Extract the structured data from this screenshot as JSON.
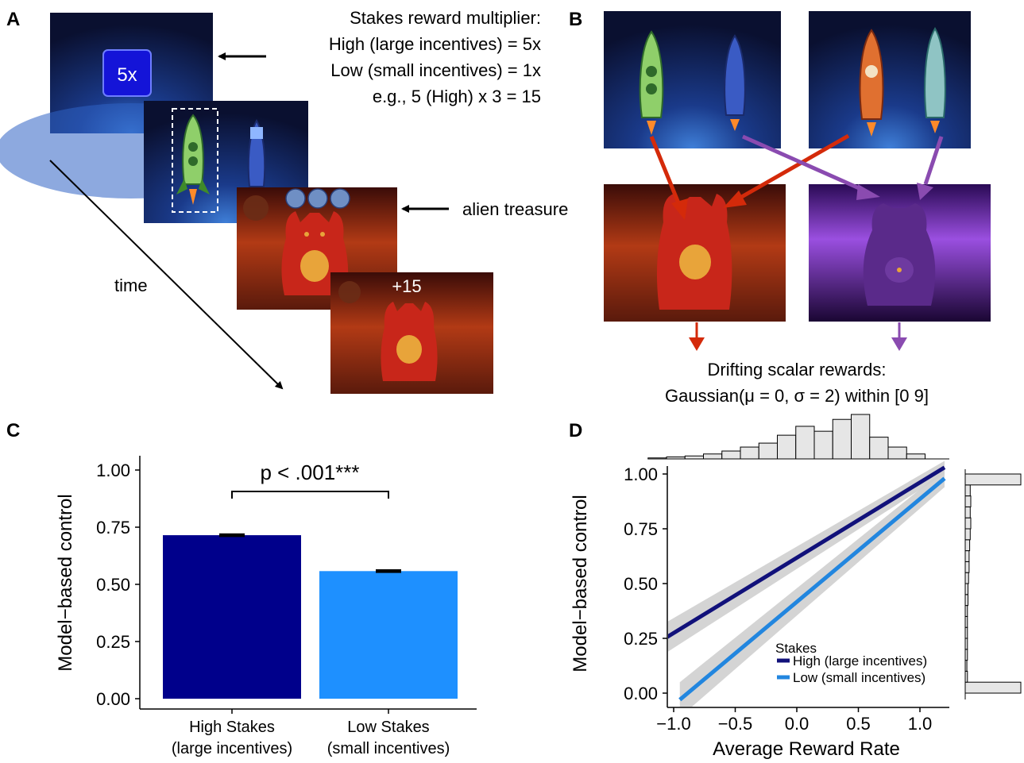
{
  "panels": {
    "a": "A",
    "b": "B",
    "c": "C",
    "d": "D"
  },
  "panel_a": {
    "multiplier_text": "5x",
    "stakes_lines": [
      "Stakes reward multiplier:",
      "High (large incentives) = 5x",
      "Low (small incentives) = 1x",
      "e.g., 5 (High) x 3 = 15"
    ],
    "treasure_label": "alien treasure",
    "reward_text": "+15",
    "time_label": "time"
  },
  "panel_b": {
    "caption_lines": [
      "Drifting scalar rewards:",
      "Gaussian(μ = 0, σ = 2) within [0 9]"
    ]
  },
  "colors": {
    "high": "#00008B",
    "low": "#1E90FF",
    "line_high": "#11117a",
    "line_low": "#2286df",
    "ci": "#cfcfcf",
    "red_arrow": "#d42a0a",
    "purple_arrow": "#8a4bb0",
    "space": "#0d1a45",
    "mars": "#8a2a12",
    "purple_planet": "#7b2fb3"
  },
  "chart_data": [
    {
      "type": "bar",
      "panel": "C",
      "categories": [
        "High Stakes\n(large incentives)",
        "Low Stakes\n(small incentives)"
      ],
      "category_lines": [
        [
          "High Stakes",
          "(large incentives)"
        ],
        [
          "Low Stakes",
          "(small incentives)"
        ]
      ],
      "values": [
        0.715,
        0.558
      ],
      "errors": [
        0.008,
        0.008
      ],
      "ylabel": "Model−based control",
      "xlabel": "",
      "ylim": [
        0,
        1.05
      ],
      "yticks": [
        "0.00",
        "0.25",
        "0.50",
        "0.75",
        "1.00"
      ],
      "annotation": "p < .001***",
      "grid": false
    },
    {
      "type": "line",
      "panel": "D",
      "xlabel": "Average Reward Rate",
      "ylabel": "Model−based control",
      "xlim": [
        -1.15,
        1.25
      ],
      "ylim": [
        -0.02,
        1.05
      ],
      "xticks": [
        "−1.0",
        "−0.5",
        "0.0",
        "0.5",
        "1.0"
      ],
      "yticks": [
        "0.00",
        "0.25",
        "0.50",
        "0.75",
        "1.00"
      ],
      "legend_title": "Stakes",
      "legend_position": "bottom-right",
      "series": [
        {
          "name": "High (large incentives)",
          "x": [
            -1.1,
            1.2
          ],
          "y": [
            0.24,
            1.03
          ],
          "ci_low": [
            0.17,
            1.0
          ],
          "ci_high": [
            0.31,
            1.06
          ]
        },
        {
          "name": "Low (small incentives)",
          "x": [
            -0.95,
            1.2
          ],
          "y": [
            -0.03,
            0.98
          ],
          "ci_low": [
            -0.11,
            0.94
          ],
          "ci_high": [
            0.05,
            1.02
          ]
        }
      ],
      "x_histogram": {
        "bin_starts": [
          -1.1,
          -0.95,
          -0.8,
          -0.65,
          -0.5,
          -0.35,
          -0.2,
          -0.05,
          0.1,
          0.25,
          0.4,
          0.55,
          0.7,
          0.85,
          1.0,
          1.15
        ],
        "bin_width": 0.15,
        "counts": [
          0,
          1,
          2,
          3,
          5,
          8,
          12,
          16,
          24,
          33,
          28,
          40,
          45,
          22,
          12,
          5
        ]
      },
      "y_histogram": {
        "bin_starts": [
          0.0,
          0.05,
          0.1,
          0.15,
          0.2,
          0.25,
          0.3,
          0.35,
          0.4,
          0.45,
          0.5,
          0.55,
          0.6,
          0.65,
          0.7,
          0.75,
          0.8,
          0.85,
          0.9,
          0.95
        ],
        "bin_width": 0.05,
        "counts": [
          100,
          4,
          3,
          4,
          4,
          4,
          4,
          4,
          5,
          5,
          6,
          7,
          7,
          8,
          9,
          10,
          9,
          10,
          9,
          100
        ]
      },
      "grid": false
    }
  ]
}
